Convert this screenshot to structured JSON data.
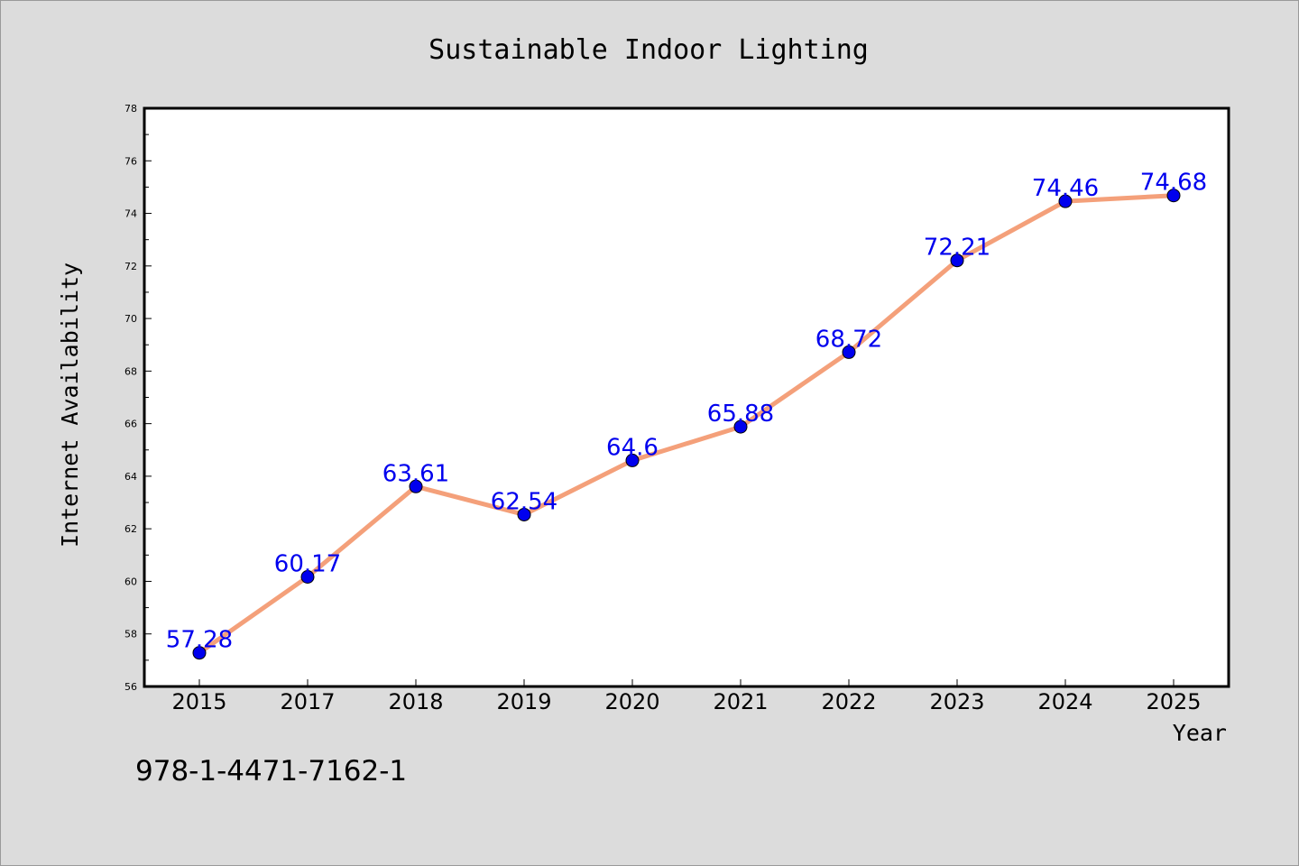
{
  "colors": {
    "line": "#f4a07a",
    "marker": "#0000ee",
    "data_label": "#0000ee",
    "plot_background": "#ffffff",
    "figure_background": "#dcdcdc"
  },
  "chart_data": {
    "type": "line",
    "title": "Sustainable Indoor Lighting",
    "xlabel": "Year",
    "ylabel": "Internet Availability",
    "categories": [
      "2015",
      "2017",
      "2018",
      "2019",
      "2020",
      "2021",
      "2022",
      "2023",
      "2024",
      "2025"
    ],
    "series": [
      {
        "values": [
          57.28,
          60.17,
          63.61,
          62.54,
          64.6,
          65.88,
          68.72,
          72.21,
          74.46,
          74.68
        ],
        "labels": [
          "57.28",
          "60.17",
          "63.61",
          "62.54",
          "64.6",
          "65.88",
          "68.72",
          "72.21",
          "74.46",
          "74.68"
        ]
      }
    ],
    "ylim": [
      56,
      78
    ],
    "yticks": [
      "56",
      "58",
      "60",
      "62",
      "64",
      "66",
      "68",
      "70",
      "72",
      "74",
      "76",
      "78"
    ],
    "grid": false,
    "legend": "none"
  },
  "footer": {
    "isbn": "978-1-4471-7162-1"
  }
}
